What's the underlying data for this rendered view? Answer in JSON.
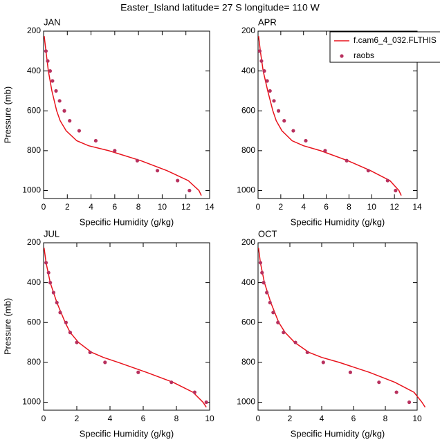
{
  "title": "Easter_Island  latitude= 27 S longitude= 110 W",
  "chart_data": [
    {
      "type": "line",
      "title": "JAN",
      "xlabel": "Specific Humidity (g/kg)",
      "ylabel": "Pressure (mb)",
      "xlim": [
        0,
        14
      ],
      "xticks": [
        0,
        2,
        4,
        6,
        8,
        10,
        12,
        14
      ],
      "ylim": [
        1040,
        200
      ],
      "yticks": [
        200,
        400,
        600,
        800,
        1000
      ],
      "series": [
        {
          "color": "#e8121b",
          "x": [
            0.05,
            0.2,
            0.4,
            0.7,
            1.1,
            1.4,
            1.9,
            2.8,
            3.8,
            5.5,
            8.2,
            10.4,
            12.2,
            13.1,
            13.3
          ],
          "values": [
            225,
            300,
            400,
            500,
            600,
            650,
            700,
            750,
            775,
            800,
            850,
            900,
            950,
            1000,
            1025
          ]
        },
        {
          "color": "#b8305e",
          "marker": true,
          "x": [
            0.2,
            0.35,
            0.55,
            0.75,
            1.05,
            1.35,
            1.75,
            2.2,
            3.0,
            4.4,
            6.0,
            7.9,
            9.6,
            11.3,
            12.3
          ],
          "values": [
            300,
            350,
            400,
            450,
            500,
            550,
            600,
            650,
            700,
            750,
            800,
            850,
            900,
            950,
            1000
          ]
        }
      ]
    },
    {
      "type": "line",
      "title": "APR",
      "xlabel": "Specific Humidity (g/kg)",
      "xlim": [
        0,
        14
      ],
      "xticks": [
        0,
        2,
        4,
        6,
        8,
        10,
        12,
        14
      ],
      "ylim": [
        1040,
        200
      ],
      "yticks": [
        200,
        400,
        600,
        800,
        1000
      ],
      "series": [
        {
          "name": "f.cam6_4_032.FLTHIS",
          "color": "#e8121b",
          "x": [
            0.05,
            0.2,
            0.45,
            0.85,
            1.3,
            1.6,
            2.1,
            3.0,
            4.0,
            5.5,
            7.9,
            9.9,
            11.6,
            12.4,
            12.6
          ],
          "values": [
            225,
            300,
            400,
            500,
            600,
            650,
            700,
            750,
            775,
            800,
            850,
            900,
            950,
            1000,
            1025
          ]
        },
        {
          "name": "raobs",
          "color": "#b8305e",
          "marker": true,
          "x": [
            0.15,
            0.3,
            0.55,
            0.8,
            1.05,
            1.4,
            1.8,
            2.3,
            3.1,
            4.2,
            5.9,
            7.8,
            9.7,
            11.4,
            12.1
          ],
          "values": [
            300,
            350,
            400,
            450,
            500,
            550,
            600,
            650,
            700,
            750,
            800,
            850,
            900,
            950,
            1000
          ]
        }
      ]
    },
    {
      "type": "line",
      "title": "JUL",
      "xlabel": "Specific Humidity (g/kg)",
      "ylabel": "Pressure (mb)",
      "xlim": [
        0,
        10
      ],
      "xticks": [
        0,
        2,
        4,
        6,
        8,
        10
      ],
      "ylim": [
        1040,
        200
      ],
      "yticks": [
        200,
        400,
        600,
        800,
        1000
      ],
      "series": [
        {
          "color": "#e8121b",
          "x": [
            0.03,
            0.15,
            0.4,
            0.8,
            1.3,
            1.6,
            2.1,
            2.9,
            3.6,
            4.5,
            6.2,
            7.8,
            9.0,
            9.6,
            9.8
          ],
          "values": [
            225,
            300,
            400,
            500,
            600,
            650,
            700,
            750,
            775,
            800,
            850,
            900,
            950,
            1000,
            1025
          ]
        },
        {
          "color": "#b8305e",
          "marker": true,
          "x": [
            0.15,
            0.3,
            0.4,
            0.6,
            0.8,
            1.0,
            1.35,
            1.6,
            2.0,
            2.8,
            3.7,
            5.7,
            7.7,
            9.1,
            9.8
          ],
          "values": [
            300,
            350,
            400,
            450,
            500,
            550,
            600,
            650,
            700,
            750,
            800,
            850,
            900,
            950,
            1000
          ]
        }
      ]
    },
    {
      "type": "line",
      "title": "OCT",
      "xlabel": "Specific Humidity (g/kg)",
      "xlim": [
        0,
        10
      ],
      "xticks": [
        0,
        2,
        4,
        6,
        8,
        10
      ],
      "ylim": [
        1040,
        200
      ],
      "yticks": [
        200,
        400,
        600,
        800,
        1000
      ],
      "series": [
        {
          "color": "#e8121b",
          "x": [
            0.03,
            0.15,
            0.4,
            0.8,
            1.3,
            1.7,
            2.3,
            3.2,
            4.0,
            5.1,
            7.0,
            8.6,
            9.8,
            10.3,
            10.5
          ],
          "values": [
            225,
            300,
            400,
            500,
            600,
            650,
            700,
            750,
            775,
            800,
            850,
            900,
            950,
            1000,
            1025
          ]
        },
        {
          "color": "#b8305e",
          "marker": true,
          "x": [
            0.15,
            0.25,
            0.35,
            0.55,
            0.75,
            0.95,
            1.25,
            1.6,
            2.35,
            3.1,
            4.1,
            5.8,
            7.6,
            8.7,
            9.5
          ],
          "values": [
            300,
            350,
            400,
            450,
            500,
            550,
            600,
            650,
            700,
            750,
            800,
            850,
            900,
            950,
            1000
          ]
        }
      ]
    }
  ]
}
